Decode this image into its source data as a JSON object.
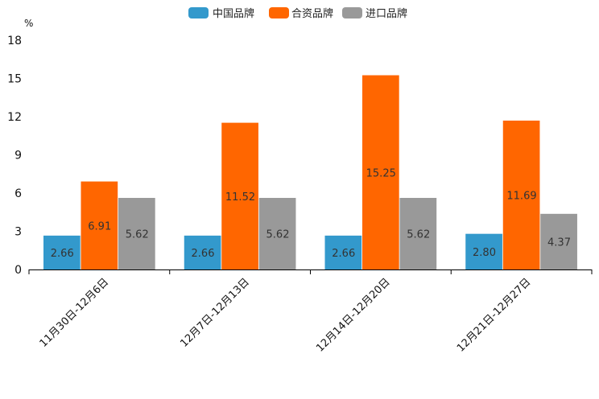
{
  "chart_data": {
    "type": "bar",
    "title": "",
    "xlabel": "",
    "ylabel": "%",
    "ylim": [
      0,
      18
    ],
    "yticks": [
      0,
      3,
      6,
      9,
      12,
      15,
      18
    ],
    "grid": false,
    "legend_position": "top-center",
    "categories": [
      "11月30日-12月6日",
      "12月7日-12月13日",
      "12月14日-12月20日",
      "12月21日-12月27日"
    ],
    "series": [
      {
        "name": "中国品牌",
        "color": "#3399cc",
        "values": [
          2.66,
          2.66,
          2.66,
          2.8
        ],
        "labels": [
          "2.66",
          "2.66",
          "2.66",
          "2.80"
        ]
      },
      {
        "name": "合资品牌",
        "color": "#ff6600",
        "values": [
          6.91,
          11.52,
          15.25,
          11.69
        ],
        "labels": [
          "6.91",
          "11.52",
          "15.25",
          "11.69"
        ]
      },
      {
        "name": "进口品牌",
        "color": "#999999",
        "values": [
          5.62,
          5.62,
          5.62,
          4.37
        ],
        "labels": [
          "5.62",
          "5.62",
          "5.62",
          "4.37"
        ]
      }
    ]
  }
}
